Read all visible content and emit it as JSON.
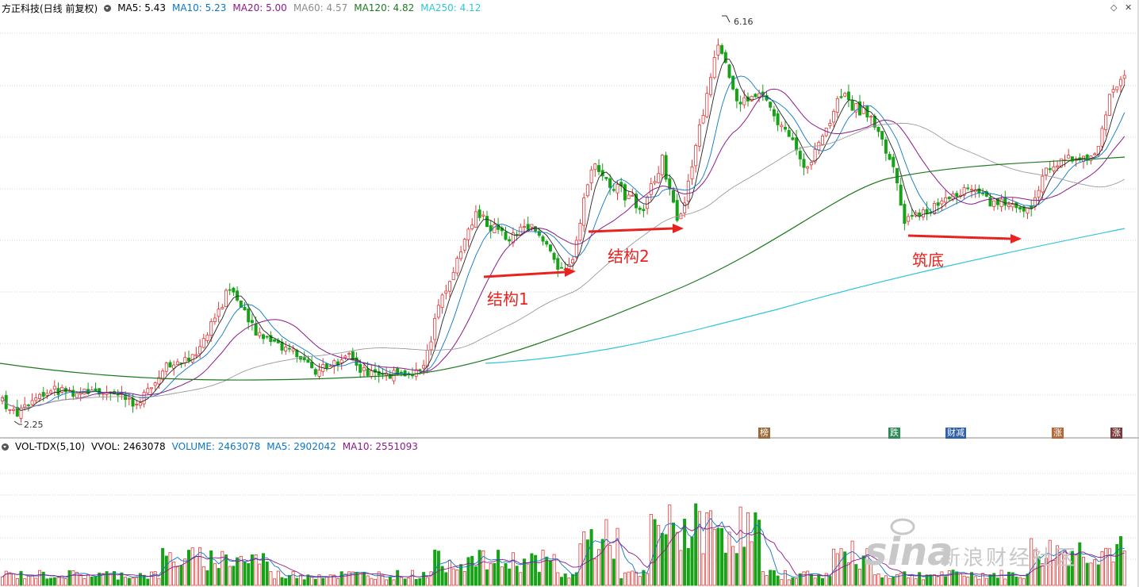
{
  "header": {
    "title": "方正科技(日线 前复权)",
    "ma": [
      {
        "label": "MA5: 5.43",
        "color": "#000000"
      },
      {
        "label": "MA10: 5.23",
        "color": "#0b77c8"
      },
      {
        "label": "MA20: 5.00",
        "color": "#8b1a8b"
      },
      {
        "label": "MA60: 4.57",
        "color": "#8c8c8c"
      },
      {
        "label": "MA120: 4.82",
        "color": "#1f7a1f"
      },
      {
        "label": "MA250: 4.12",
        "color": "#2fc5d8"
      }
    ]
  },
  "vol_header": {
    "title": "VOL-TDX(5,10)",
    "items": [
      {
        "label": "VVOL: 2463078",
        "color": "#000000"
      },
      {
        "label": "VOLUME: 2463078",
        "color": "#0b77c8"
      },
      {
        "label": "MA5: 2902042",
        "color": "#0b77c8"
      },
      {
        "label": "MA10: 2551093",
        "color": "#8b1a8b"
      }
    ]
  },
  "annotations": {
    "high": "6.16",
    "low": "2.25",
    "structure1": "结构1",
    "structure2": "结构2",
    "base": "筑底"
  },
  "badges": [
    {
      "text": "榜",
      "color": "#9a6a3a"
    },
    {
      "text": "跌",
      "color": "#2e8b57"
    },
    {
      "text": "财减",
      "color": "#2f5fa8"
    },
    {
      "text": "涨",
      "color": "#b06a3a"
    },
    {
      "text": "涨",
      "color": "#7a3a3a"
    }
  ],
  "watermark": {
    "logo": "sina",
    "text": "新浪财经社区"
  },
  "colors": {
    "up": "#e03a3a",
    "down": "#17a217",
    "grid": "#d8d8d8",
    "arrow": "#e8231f"
  },
  "chart_data": {
    "type": "candlestick",
    "price_range": [
      2.25,
      6.16
    ],
    "ohlc": []
  }
}
